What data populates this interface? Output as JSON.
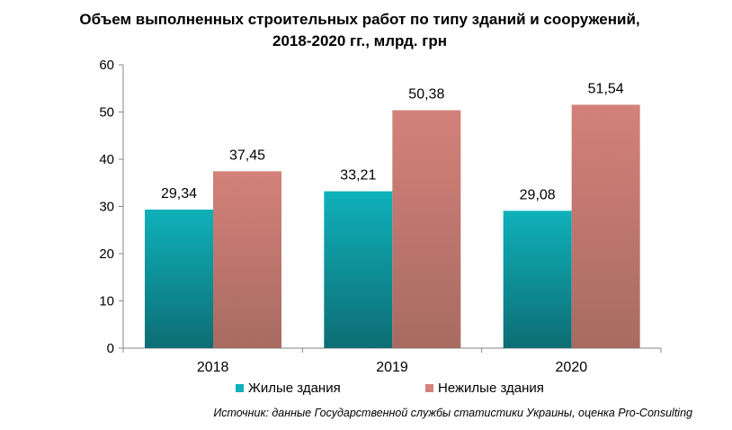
{
  "title": {
    "line1": "Объем выполненных строительных работ по типу зданий и сооружений,",
    "line2": "2018-2020 гг., млрд. грн"
  },
  "source": "Источник: данные Государственной службы статистики Украины, оценка Pro-Consulting",
  "colors": {
    "residential_top": "#0fb1ba",
    "residential_bottom": "#0d6d74",
    "nonresidential_top": "#d3817a",
    "nonresidential_bottom": "#a86b62"
  },
  "chart_data": {
    "type": "bar",
    "categories": [
      "2018",
      "2019",
      "2020"
    ],
    "series": [
      {
        "name": "Жилые здания",
        "values": [
          29.34,
          33.21,
          29.08
        ],
        "labels": [
          "29,34",
          "33,21",
          "29,08"
        ]
      },
      {
        "name": "Нежилые здания",
        "values": [
          37.45,
          50.38,
          51.54
        ],
        "labels": [
          "37,45",
          "50,38",
          "51,54"
        ]
      }
    ],
    "ylim": [
      0,
      60
    ],
    "yticks": [
      0,
      10,
      20,
      30,
      40,
      50,
      60
    ],
    "grid": false,
    "legend": "bottom"
  }
}
